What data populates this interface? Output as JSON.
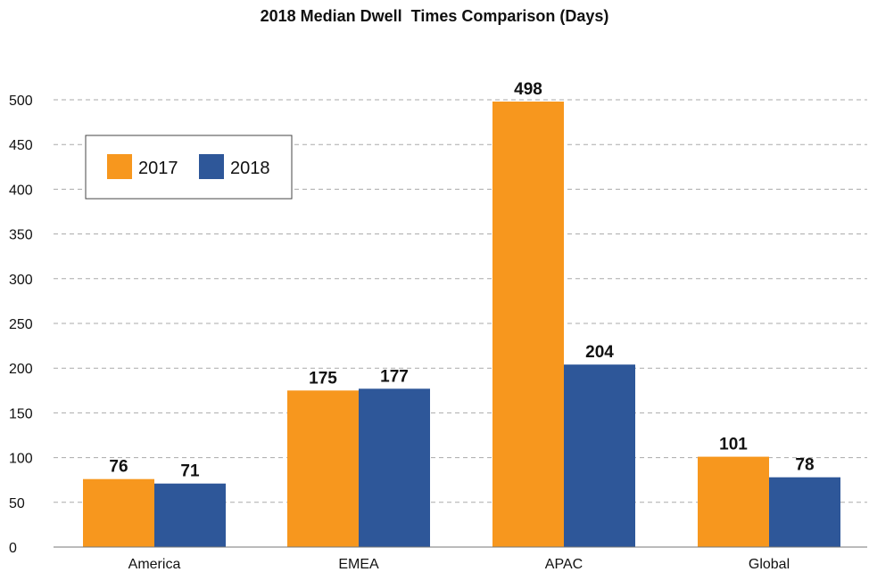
{
  "chart_data": {
    "type": "bar",
    "title": "2018 Median Dwell  Times Comparison (Days)",
    "categories": [
      "America",
      "EMEA",
      "APAC",
      "Global"
    ],
    "series": [
      {
        "name": "2017",
        "values": [
          76,
          175,
          498,
          101
        ],
        "color": "#f7971e"
      },
      {
        "name": "2018",
        "values": [
          71,
          177,
          204,
          78
        ],
        "color": "#2e5799"
      }
    ],
    "ylim": [
      0,
      500
    ],
    "yticks": [
      0,
      50,
      100,
      150,
      200,
      250,
      300,
      350,
      400,
      450,
      500
    ],
    "grid": true,
    "legend": "top-left"
  }
}
